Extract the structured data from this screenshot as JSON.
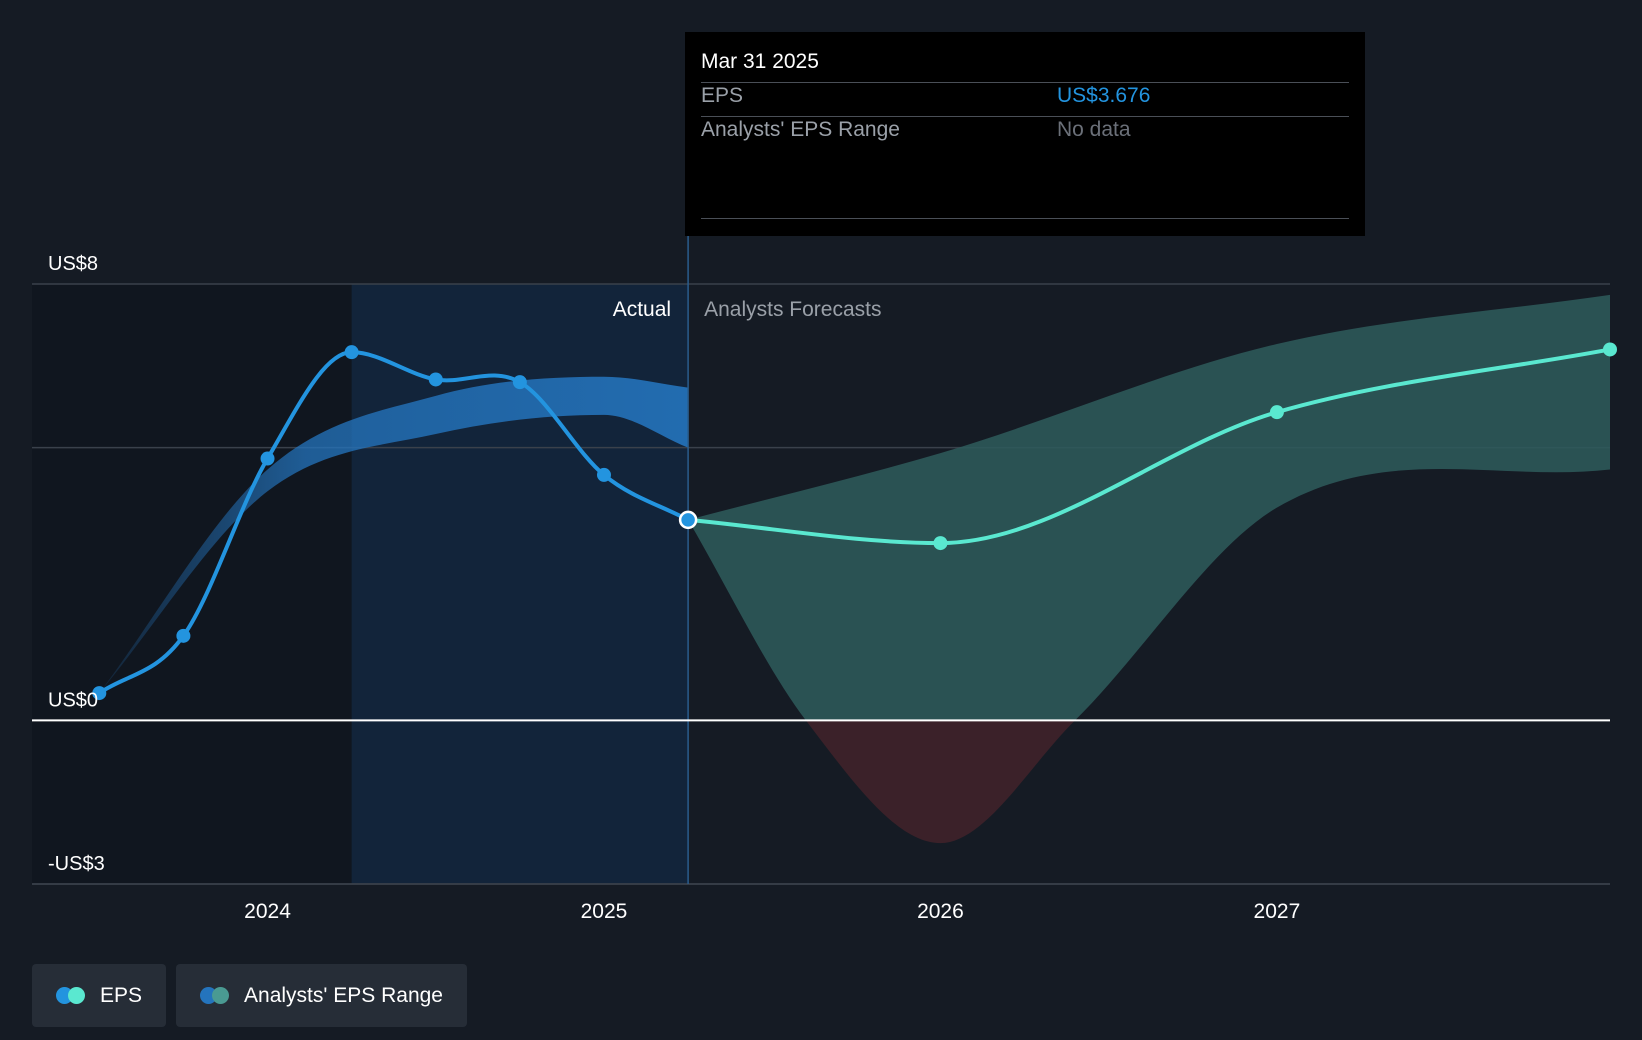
{
  "chart_data": {
    "type": "line",
    "title": "",
    "y_axis": {
      "min": -3,
      "max": 8,
      "tick_labels": [
        {
          "label": "US$8",
          "value": 8
        },
        {
          "label": "US$0",
          "value": 0
        },
        {
          "label": "-US$3",
          "value": -3
        }
      ],
      "gridlines": [
        8,
        5,
        0,
        -3
      ]
    },
    "x_axis": {
      "min": 2023.3,
      "max": 2027.99,
      "ticks": [
        {
          "label": "2024",
          "value": 2024.0
        },
        {
          "label": "2025",
          "value": 2025.0
        },
        {
          "label": "2026",
          "value": 2026.0
        },
        {
          "label": "2027",
          "value": 2027.0
        }
      ]
    },
    "regions": {
      "actual_label": "Actual",
      "forecast_label": "Analysts Forecasts",
      "divider_x": 2025.25,
      "highlight_start_x": 2024.25
    },
    "series": [
      {
        "name": "EPS",
        "color": "#2394df",
        "points": [
          {
            "x": 2023.5,
            "y": 0.5
          },
          {
            "x": 2023.75,
            "y": 1.55
          },
          {
            "x": 2024.0,
            "y": 4.8
          },
          {
            "x": 2024.25,
            "y": 6.75
          },
          {
            "x": 2024.5,
            "y": 6.25
          },
          {
            "x": 2024.75,
            "y": 6.2
          },
          {
            "x": 2025.0,
            "y": 4.5
          },
          {
            "x": 2025.25,
            "y": 3.676
          }
        ]
      },
      {
        "name": "EPS",
        "color": "#5ae8d0",
        "points": [
          {
            "x": 2025.25,
            "y": 3.676
          },
          {
            "x": 2026.0,
            "y": 3.25
          },
          {
            "x": 2027.0,
            "y": 5.65
          },
          {
            "x": 2028.0,
            "y": 6.8
          }
        ]
      }
    ],
    "ranges": [
      {
        "name": "Analysts' EPS Range",
        "color": "#2474bd",
        "upper": [
          {
            "x": 2023.5,
            "y": 0.5
          },
          {
            "x": 2024.0,
            "y": 4.6
          },
          {
            "x": 2024.5,
            "y": 5.95
          },
          {
            "x": 2025.0,
            "y": 6.3
          },
          {
            "x": 2025.25,
            "y": 6.1
          }
        ],
        "lower": [
          {
            "x": 2023.5,
            "y": 0.5
          },
          {
            "x": 2024.0,
            "y": 4.2
          },
          {
            "x": 2024.5,
            "y": 5.25
          },
          {
            "x": 2025.0,
            "y": 5.6
          },
          {
            "x": 2025.25,
            "y": 5.0
          }
        ]
      },
      {
        "name": "Analysts' EPS Range",
        "color": "#2e5c5c",
        "upper": [
          {
            "x": 2025.25,
            "y": 3.676
          },
          {
            "x": 2026.0,
            "y": 4.9
          },
          {
            "x": 2027.0,
            "y": 6.9
          },
          {
            "x": 2028.0,
            "y": 7.8
          }
        ],
        "lower": [
          {
            "x": 2025.25,
            "y": 3.676
          },
          {
            "x": 2025.6,
            "y": 0.0
          },
          {
            "x": 2026.0,
            "y": -2.25
          },
          {
            "x": 2026.4,
            "y": 0.0
          },
          {
            "x": 2027.0,
            "y": 3.9
          },
          {
            "x": 2028.0,
            "y": 4.6
          }
        ]
      }
    ],
    "legend": {
      "position": "bottom-left",
      "items": [
        {
          "label": "EPS",
          "colors": [
            "#2394df",
            "#5ae8d0"
          ]
        },
        {
          "label": "Analysts' EPS Range",
          "colors": [
            "#2474bd",
            "#4a9a92"
          ]
        }
      ]
    },
    "tooltip": {
      "date": "Mar 31 2025",
      "rows": [
        {
          "label": "EPS",
          "value": "US$3.676",
          "value_color": "#2394df"
        },
        {
          "label": "Analysts' EPS Range",
          "value": "No data",
          "value_color": "#6b7079"
        }
      ]
    }
  },
  "colors": {
    "background": "#151b24",
    "actual_shade": "#10161f",
    "highlight": "#12243a",
    "negative_fill": "#3b2129",
    "grid": "#3a414b",
    "zero_line": "#ffffff"
  }
}
